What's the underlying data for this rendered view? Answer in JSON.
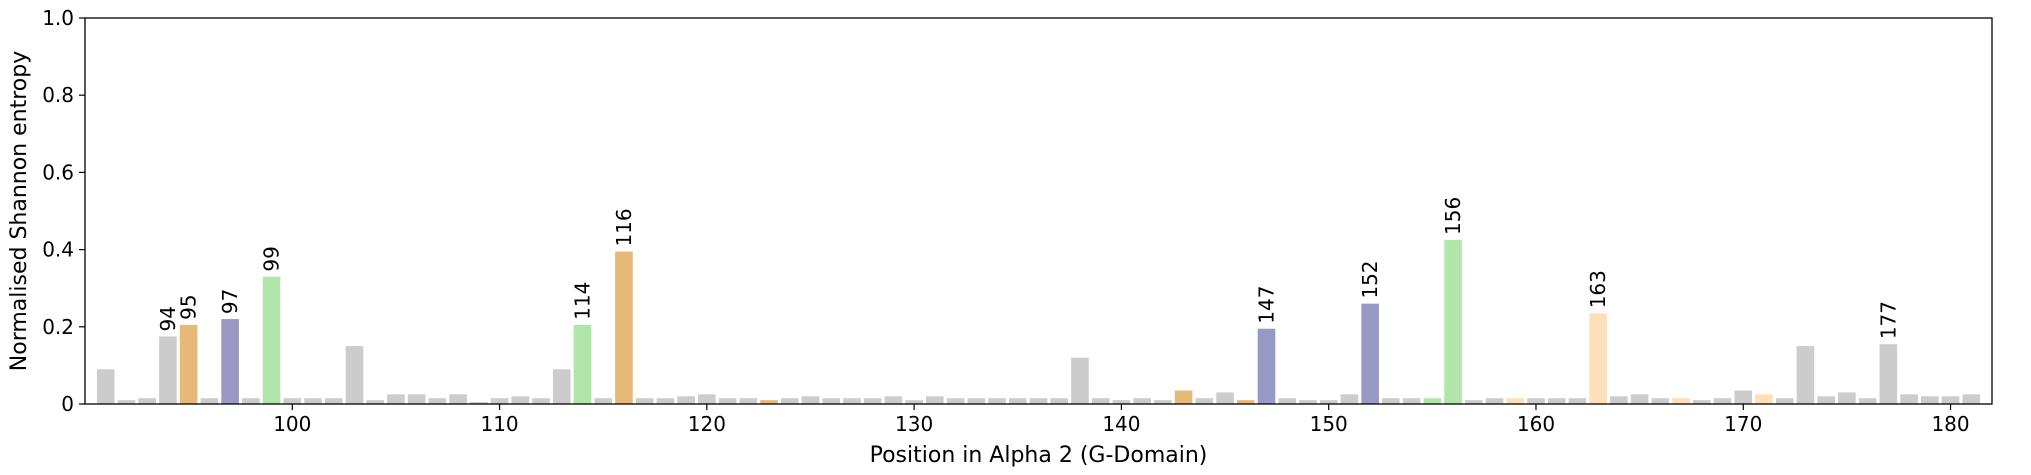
{
  "chart_data": {
    "type": "bar",
    "xlabel": "Position in Alpha 2 (G-Domain)",
    "ylabel": "Normalised Shannon entropy",
    "xlim": [
      90,
      182
    ],
    "ylim": [
      0,
      1.0
    ],
    "xticks": [
      "100",
      "110",
      "120",
      "130",
      "140",
      "150",
      "160",
      "170",
      "180"
    ],
    "yticks": [
      "0",
      "0.2",
      "0.4",
      "0.6",
      "0.8",
      "1.0"
    ],
    "grid": false,
    "legend": "none",
    "colors": {
      "default": "#cccccc",
      "orange": "#e6b978",
      "purple": "#9898c4",
      "green": "#b0e6aa",
      "peach": "#fde0b8"
    },
    "positions": [
      91,
      92,
      93,
      94,
      95,
      96,
      97,
      98,
      99,
      100,
      101,
      102,
      103,
      104,
      105,
      106,
      107,
      108,
      109,
      110,
      111,
      112,
      113,
      114,
      115,
      116,
      117,
      118,
      119,
      120,
      121,
      122,
      123,
      124,
      125,
      126,
      127,
      128,
      129,
      130,
      131,
      132,
      133,
      134,
      135,
      136,
      137,
      138,
      139,
      140,
      141,
      142,
      143,
      144,
      145,
      146,
      147,
      148,
      149,
      150,
      151,
      152,
      153,
      154,
      155,
      156,
      157,
      158,
      159,
      160,
      161,
      162,
      163,
      164,
      165,
      166,
      167,
      168,
      169,
      170,
      171,
      172,
      173,
      174,
      175,
      176,
      177,
      178,
      179,
      180,
      181
    ],
    "values": [
      0.09,
      0.01,
      0.015,
      0.175,
      0.205,
      0.015,
      0.22,
      0.015,
      0.33,
      0.015,
      0.015,
      0.015,
      0.15,
      0.01,
      0.025,
      0.025,
      0.015,
      0.025,
      0.005,
      0.015,
      0.02,
      0.015,
      0.09,
      0.205,
      0.015,
      0.395,
      0.015,
      0.015,
      0.02,
      0.025,
      0.015,
      0.015,
      0.01,
      0.015,
      0.02,
      0.015,
      0.015,
      0.015,
      0.02,
      0.01,
      0.02,
      0.015,
      0.015,
      0.015,
      0.015,
      0.015,
      0.015,
      0.12,
      0.015,
      0.01,
      0.015,
      0.01,
      0.035,
      0.015,
      0.03,
      0.01,
      0.195,
      0.015,
      0.01,
      0.01,
      0.025,
      0.26,
      0.015,
      0.015,
      0.015,
      0.425,
      0.01,
      0.015,
      0.015,
      0.015,
      0.015,
      0.015,
      0.235,
      0.02,
      0.025,
      0.015,
      0.015,
      0.01,
      0.015,
      0.035,
      0.025,
      0.015,
      0.15,
      0.02,
      0.03,
      0.015,
      0.155,
      0.025,
      0.02,
      0.02,
      0.025
    ],
    "colorKeys": {
      "94": "default",
      "95": "orange",
      "97": "purple",
      "99": "green",
      "114": "green",
      "116": "orange",
      "123": "orange",
      "143": "orange",
      "146": "orange",
      "147": "purple",
      "152": "purple",
      "155": "green",
      "156": "green",
      "159": "peach",
      "163": "peach",
      "167": "peach",
      "171": "peach"
    },
    "annotations": [
      "94",
      "95",
      "97",
      "99",
      "114",
      "116",
      "147",
      "152",
      "156",
      "163",
      "177"
    ]
  }
}
